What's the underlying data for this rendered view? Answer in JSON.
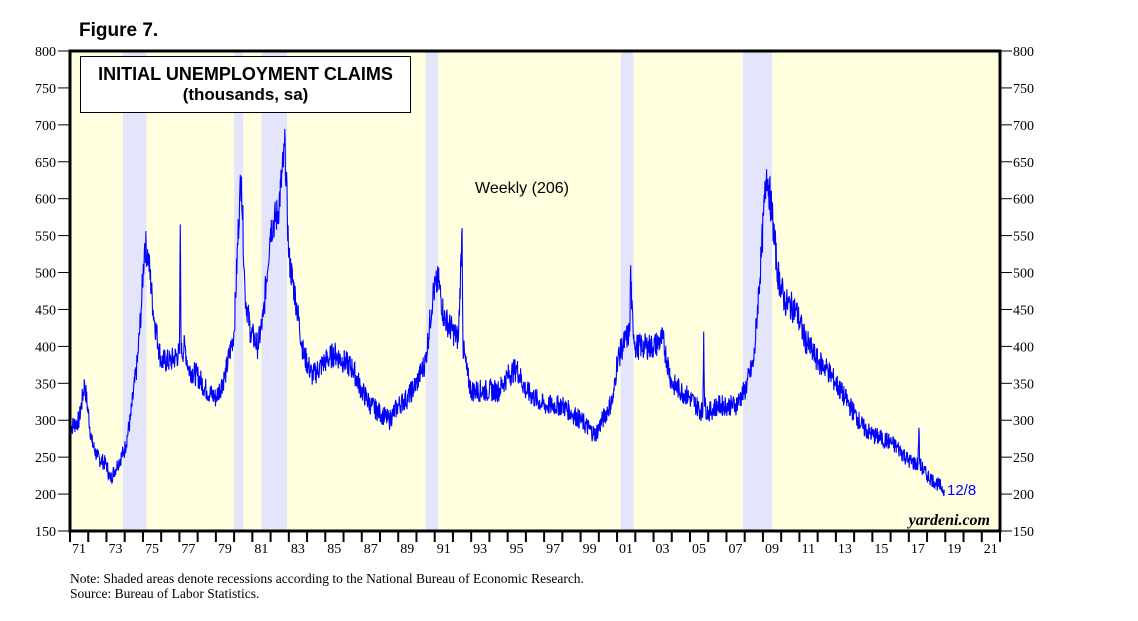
{
  "figure_label": "Figure 7.",
  "notes": {
    "note": "Note: Shaded areas denote recessions according to the National Bureau of Economic Research.",
    "source": "Source: Bureau of Labor Statistics."
  },
  "chart_data": {
    "type": "line",
    "title": "INITIAL UNEMPLOYMENT CLAIMS",
    "subtitle": "(thousands, sa)",
    "series_label": "Weekly (206)",
    "end_label": "12/8",
    "watermark": "yardeni.com",
    "xlabel": "",
    "ylabel": "",
    "xlim": [
      1971,
      2022
    ],
    "ylim": [
      150,
      800
    ],
    "yticks": [
      150,
      200,
      250,
      300,
      350,
      400,
      450,
      500,
      550,
      600,
      650,
      700,
      750,
      800
    ],
    "xtick_labels": [
      "71",
      "73",
      "75",
      "77",
      "79",
      "81",
      "83",
      "85",
      "87",
      "89",
      "91",
      "93",
      "95",
      "97",
      "99",
      "01",
      "03",
      "05",
      "07",
      "09",
      "11",
      "13",
      "15",
      "17",
      "19",
      "21"
    ],
    "recessions": [
      [
        1973.9,
        1975.2
      ],
      [
        1980.0,
        1980.5
      ],
      [
        1981.5,
        1982.9
      ],
      [
        1990.5,
        1991.2
      ],
      [
        2001.2,
        2001.9
      ],
      [
        2007.9,
        2009.5
      ]
    ],
    "colors": {
      "line": "#0000ff",
      "background": "#ffffe0",
      "recession": "#e4e4fa",
      "end_label": "#0000ff"
    },
    "series": [
      {
        "name": "Weekly",
        "points": [
          [
            1971.0,
            290
          ],
          [
            1971.5,
            300
          ],
          [
            1971.8,
            350
          ],
          [
            1972.2,
            270
          ],
          [
            1972.5,
            250
          ],
          [
            1973.0,
            240
          ],
          [
            1973.2,
            220
          ],
          [
            1973.6,
            240
          ],
          [
            1974.0,
            260
          ],
          [
            1974.3,
            300
          ],
          [
            1974.7,
            380
          ],
          [
            1974.9,
            450
          ],
          [
            1975.1,
            540
          ],
          [
            1975.3,
            520
          ],
          [
            1975.6,
            440
          ],
          [
            1976.0,
            380
          ],
          [
            1976.5,
            380
          ],
          [
            1977.0,
            390
          ],
          [
            1977.05,
            565
          ],
          [
            1977.1,
            390
          ],
          [
            1977.3,
            400
          ],
          [
            1977.5,
            370
          ],
          [
            1978.0,
            360
          ],
          [
            1978.5,
            340
          ],
          [
            1979.0,
            330
          ],
          [
            1979.5,
            360
          ],
          [
            1980.0,
            420
          ],
          [
            1980.3,
            600
          ],
          [
            1980.4,
            630
          ],
          [
            1980.6,
            470
          ],
          [
            1980.9,
            420
          ],
          [
            1981.3,
            400
          ],
          [
            1981.6,
            440
          ],
          [
            1982.0,
            560
          ],
          [
            1982.4,
            580
          ],
          [
            1982.8,
            670
          ],
          [
            1983.0,
            520
          ],
          [
            1983.4,
            460
          ],
          [
            1983.8,
            390
          ],
          [
            1984.3,
            360
          ],
          [
            1985.0,
            380
          ],
          [
            1985.5,
            390
          ],
          [
            1986.0,
            380
          ],
          [
            1986.5,
            370
          ],
          [
            1987.0,
            340
          ],
          [
            1987.5,
            320
          ],
          [
            1988.0,
            310
          ],
          [
            1988.5,
            300
          ],
          [
            1989.0,
            320
          ],
          [
            1989.5,
            330
          ],
          [
            1990.0,
            350
          ],
          [
            1990.5,
            380
          ],
          [
            1990.9,
            470
          ],
          [
            1991.2,
            490
          ],
          [
            1991.5,
            440
          ],
          [
            1992.0,
            420
          ],
          [
            1992.3,
            410
          ],
          [
            1992.5,
            560
          ],
          [
            1992.55,
            400
          ],
          [
            1992.8,
            360
          ],
          [
            1993.0,
            340
          ],
          [
            1994.0,
            340
          ],
          [
            1994.5,
            340
          ],
          [
            1995.0,
            360
          ],
          [
            1995.5,
            370
          ],
          [
            1996.0,
            340
          ],
          [
            1997.0,
            320
          ],
          [
            1998.0,
            320
          ],
          [
            1999.0,
            300
          ],
          [
            1999.8,
            280
          ],
          [
            2000.2,
            300
          ],
          [
            2000.8,
            330
          ],
          [
            2001.0,
            380
          ],
          [
            2001.3,
            400
          ],
          [
            2001.7,
            420
          ],
          [
            2001.75,
            510
          ],
          [
            2001.8,
            450
          ],
          [
            2002.0,
            400
          ],
          [
            2002.5,
            400
          ],
          [
            2003.0,
            400
          ],
          [
            2003.5,
            410
          ],
          [
            2004.0,
            350
          ],
          [
            2005.0,
            330
          ],
          [
            2005.7,
            310
          ],
          [
            2005.75,
            420
          ],
          [
            2005.8,
            320
          ],
          [
            2006.0,
            310
          ],
          [
            2006.5,
            320
          ],
          [
            2007.0,
            320
          ],
          [
            2007.5,
            320
          ],
          [
            2008.0,
            340
          ],
          [
            2008.5,
            380
          ],
          [
            2008.9,
            520
          ],
          [
            2009.2,
            640
          ],
          [
            2009.5,
            580
          ],
          [
            2009.8,
            500
          ],
          [
            2010.2,
            460
          ],
          [
            2010.8,
            450
          ],
          [
            2011.3,
            410
          ],
          [
            2012.0,
            380
          ],
          [
            2012.5,
            370
          ],
          [
            2013.0,
            350
          ],
          [
            2013.5,
            330
          ],
          [
            2014.0,
            310
          ],
          [
            2014.5,
            290
          ],
          [
            2015.0,
            280
          ],
          [
            2015.5,
            275
          ],
          [
            2016.0,
            270
          ],
          [
            2016.5,
            260
          ],
          [
            2017.0,
            245
          ],
          [
            2017.5,
            240
          ],
          [
            2017.55,
            290
          ],
          [
            2017.6,
            240
          ],
          [
            2018.0,
            225
          ],
          [
            2018.5,
            215
          ],
          [
            2018.94,
            206
          ]
        ]
      }
    ]
  }
}
